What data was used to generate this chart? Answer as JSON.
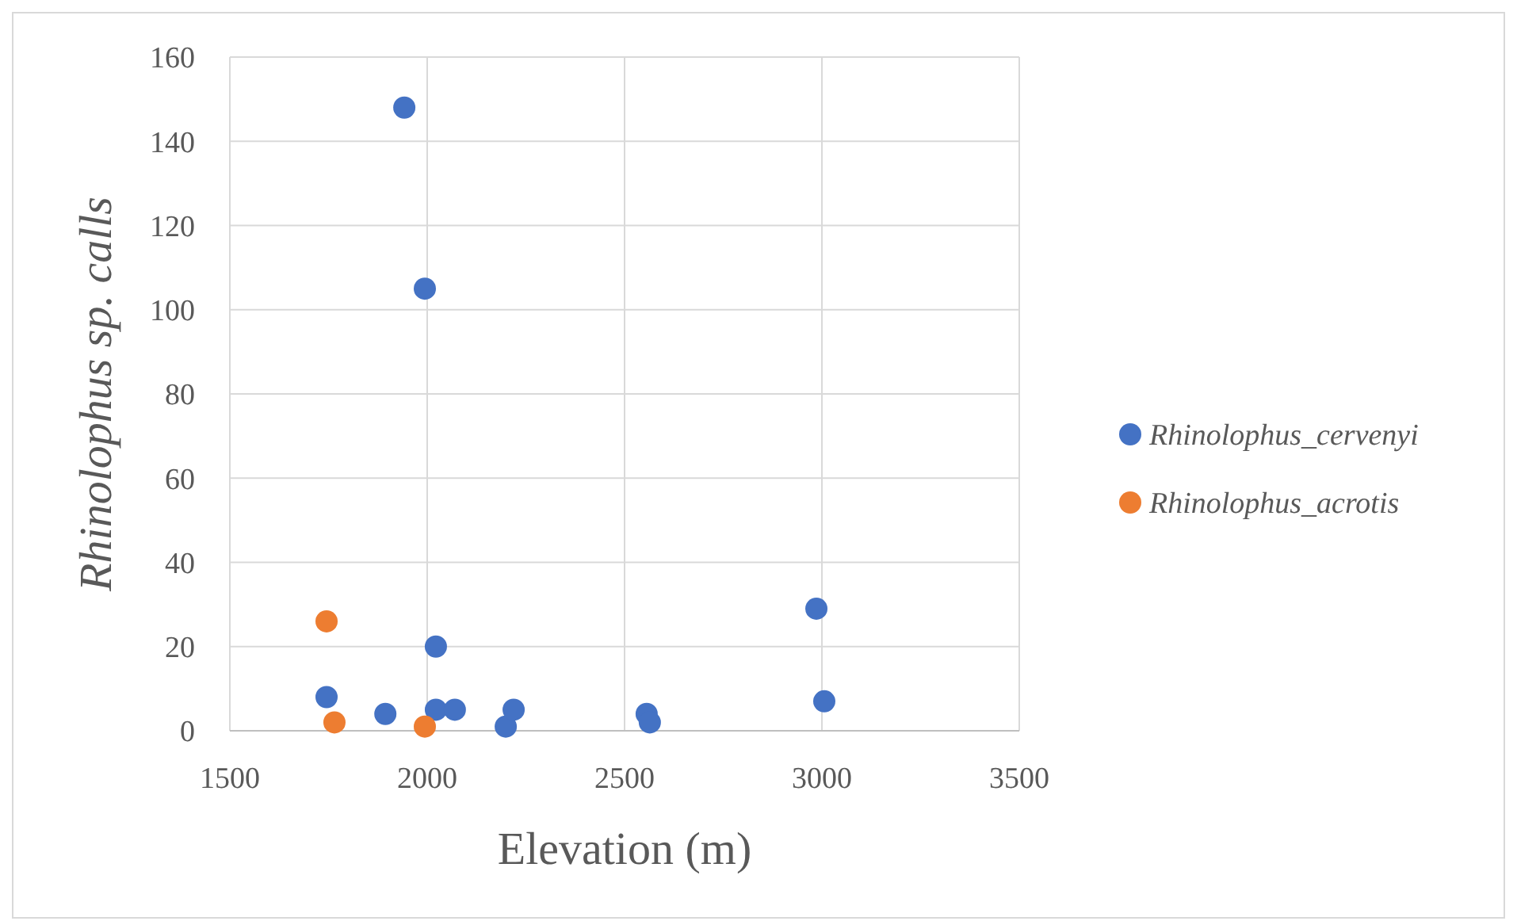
{
  "chart_data": {
    "type": "scatter",
    "xlabel": "Elevation (m)",
    "ylabel": "Rhinolophus sp. calls",
    "xlim": [
      1500,
      3500
    ],
    "xticks": [
      1500,
      2000,
      2500,
      3000,
      3500
    ],
    "ylim": [
      0,
      160
    ],
    "yticks": [
      0,
      20,
      40,
      60,
      80,
      100,
      120,
      140,
      160
    ],
    "grid": true,
    "legend": "right",
    "marker": "circle",
    "series": [
      {
        "name": "Rhinolophus_cervenyi",
        "color": "#4472c4",
        "x": [
          1942,
          1994,
          1745,
          1894,
          2022,
          2022,
          2070,
          2199,
          2219,
          2556,
          2564,
          2986,
          3006
        ],
        "values": [
          148,
          105,
          8,
          4,
          20,
          5,
          5,
          1,
          5,
          4,
          2,
          29,
          7
        ]
      },
      {
        "name": "Rhinolophus_acrotis",
        "color": "#ed7d31",
        "x": [
          1745,
          1765,
          1994
        ],
        "values": [
          26,
          2,
          1
        ]
      }
    ]
  }
}
